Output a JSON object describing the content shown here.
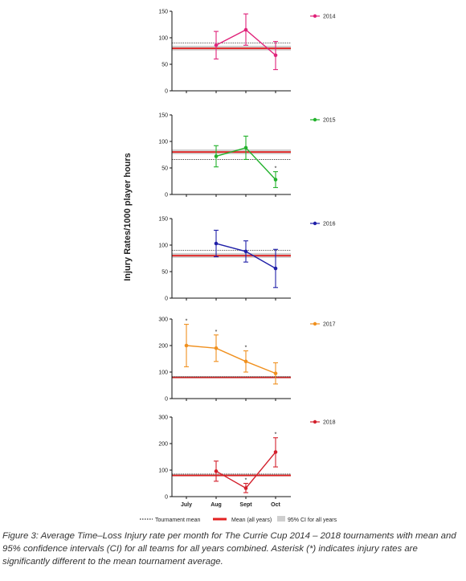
{
  "figure": {
    "ylabel": "Injury Rates/1000 player hours",
    "x_categories": [
      "July",
      "Aug",
      "Sept",
      "Oct"
    ],
    "colors": {
      "mean_line": "#e32222",
      "ci_band": "#cfcfcf",
      "tournament_mean": "#333333"
    },
    "legend": {
      "tournament_mean": "Tournament mean",
      "mean_all_years": "Mean (all years)",
      "ci_all_years": "95% CI for all years"
    },
    "caption": "Figure 3: Average Time–Loss Injury rate per month for The Currie Cup 2014 – 2018 tournaments with mean and 95% confidence intervals (CI) for all teams for all years combined. Asterisk (*) indicates injury rates are significantly different to the mean tournament average."
  },
  "chart_data": [
    {
      "type": "line",
      "series_name": "2014",
      "color": "#e0237a",
      "categories": [
        "July",
        "Aug",
        "Sept",
        "Oct"
      ],
      "values": [
        null,
        86,
        115,
        67
      ],
      "ci_low": [
        null,
        60,
        86,
        40
      ],
      "ci_high": [
        null,
        112,
        145,
        93
      ],
      "significant": [
        false,
        false,
        false,
        false
      ],
      "ylim": [
        0,
        150
      ],
      "yticks": [
        0,
        50,
        100,
        150
      ],
      "mean_all_years": 80,
      "ci_all_years": [
        76,
        85
      ],
      "tournament_mean": 90
    },
    {
      "type": "line",
      "series_name": "2015",
      "color": "#22b22c",
      "categories": [
        "July",
        "Aug",
        "Sept",
        "Oct"
      ],
      "values": [
        null,
        72,
        88,
        28
      ],
      "ci_low": [
        null,
        52,
        66,
        13
      ],
      "ci_high": [
        null,
        92,
        110,
        43
      ],
      "significant": [
        false,
        false,
        false,
        true
      ],
      "ylim": [
        0,
        150
      ],
      "yticks": [
        0,
        50,
        100,
        150
      ],
      "mean_all_years": 80,
      "ci_all_years": [
        76,
        85
      ],
      "tournament_mean": 66
    },
    {
      "type": "line",
      "series_name": "2016",
      "color": "#1f1fa8",
      "categories": [
        "July",
        "Aug",
        "Sept",
        "Oct"
      ],
      "values": [
        null,
        103,
        88,
        56
      ],
      "ci_low": [
        null,
        78,
        68,
        20
      ],
      "ci_high": [
        null,
        128,
        108,
        92
      ],
      "significant": [
        false,
        false,
        false,
        false
      ],
      "ylim": [
        0,
        150
      ],
      "yticks": [
        0,
        50,
        100,
        150
      ],
      "mean_all_years": 80,
      "ci_all_years": [
        76,
        85
      ],
      "tournament_mean": 90
    },
    {
      "type": "line",
      "series_name": "2017",
      "color": "#f0901e",
      "categories": [
        "July",
        "Aug",
        "Sept",
        "Oct"
      ],
      "values": [
        200,
        190,
        140,
        95
      ],
      "ci_low": [
        120,
        140,
        100,
        55
      ],
      "ci_high": [
        280,
        240,
        180,
        135
      ],
      "significant": [
        true,
        true,
        true,
        false
      ],
      "ylim": [
        0,
        300
      ],
      "yticks": [
        0,
        100,
        200,
        300
      ],
      "mean_all_years": 80,
      "ci_all_years": [
        76,
        85
      ],
      "tournament_mean": 82
    },
    {
      "type": "line",
      "series_name": "2018",
      "color": "#d3202c",
      "categories": [
        "July",
        "Aug",
        "Sept",
        "Oct"
      ],
      "values": [
        null,
        96,
        32,
        168
      ],
      "ci_low": [
        null,
        58,
        15,
        112
      ],
      "ci_high": [
        null,
        134,
        50,
        222
      ],
      "significant": [
        false,
        false,
        true,
        true
      ],
      "ylim": [
        0,
        300
      ],
      "yticks": [
        0,
        100,
        200,
        300
      ],
      "mean_all_years": 80,
      "ci_all_years": [
        76,
        85
      ],
      "tournament_mean": 85
    }
  ]
}
